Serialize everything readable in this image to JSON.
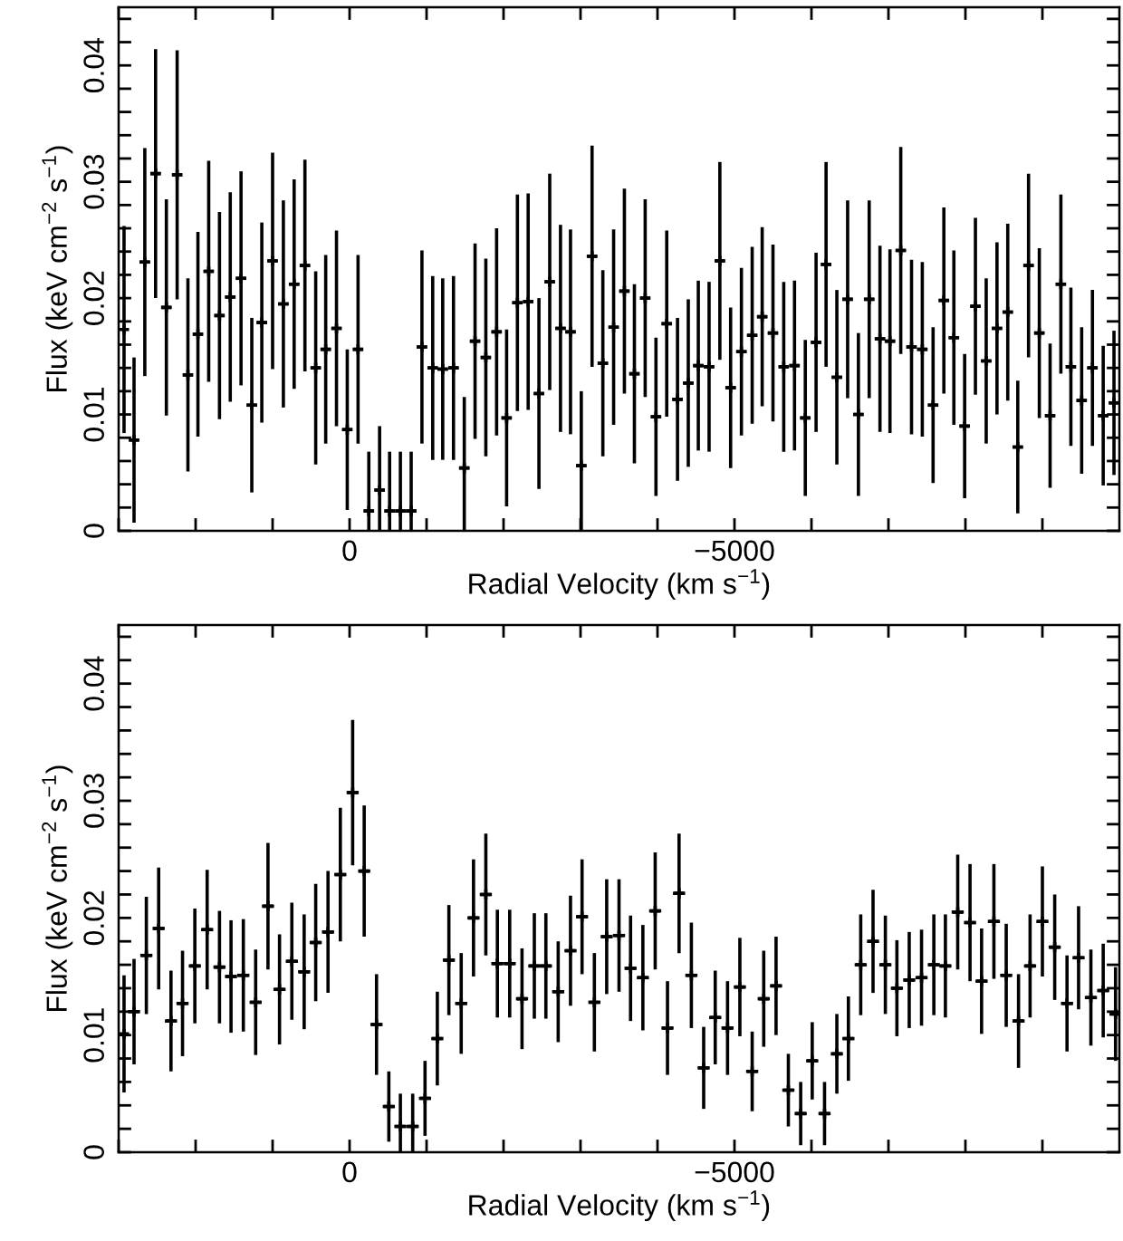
{
  "chart_data": [
    {
      "type": "scatter",
      "marker": "cross",
      "xlabel": "Radial Velocity (km s$^{−1}$)",
      "ylabel": "Flux (keV cm$^{−2}$ s$^{−1}$)",
      "xlim": [
        3000,
        -10000
      ],
      "ylim": [
        0,
        0.045
      ],
      "xticks": [
        {
          "value": 3000,
          "label": null
        },
        {
          "value": 2000,
          "label": null
        },
        {
          "value": 1000,
          "label": null
        },
        0,
        {
          "value": -1000,
          "label": null
        },
        {
          "value": -2000,
          "label": null
        },
        {
          "value": -3000,
          "label": null
        },
        {
          "value": -4000,
          "label": null
        },
        {
          "value": -5000,
          "label": "−5000"
        },
        {
          "value": -6000,
          "label": null
        },
        {
          "value": -7000,
          "label": null
        },
        {
          "value": -8000,
          "label": null
        },
        {
          "value": -9000,
          "label": null
        }
      ],
      "yticks": [
        0,
        {
          "value": 0.002,
          "label": null
        },
        {
          "value": 0.004,
          "label": null
        },
        {
          "value": 0.006,
          "label": null
        },
        {
          "value": 0.008,
          "label": null
        },
        0.01,
        {
          "value": 0.012,
          "label": null
        },
        {
          "value": 0.014,
          "label": null
        },
        {
          "value": 0.016,
          "label": null
        },
        {
          "value": 0.018,
          "label": null
        },
        0.02,
        {
          "value": 0.022,
          "label": null
        },
        {
          "value": 0.024,
          "label": null
        },
        {
          "value": 0.026,
          "label": null
        },
        {
          "value": 0.028,
          "label": null
        },
        0.03,
        {
          "value": 0.032,
          "label": null
        },
        {
          "value": 0.034,
          "label": null
        },
        {
          "value": 0.036,
          "label": null
        },
        {
          "value": 0.038,
          "label": null
        },
        0.04,
        {
          "value": 0.042,
          "label": null
        },
        {
          "value": 0.044,
          "label": null
        }
      ],
      "series": [
        {
          "color": "#000000",
          "x": [
            2930,
            2800,
            2660,
            2520,
            2380,
            2240,
            2100,
            1970,
            1830,
            1690,
            1550,
            1410,
            1270,
            1140,
            1000,
            860,
            720,
            580,
            440,
            310,
            170,
            30,
            -110,
            -250,
            -390,
            -520,
            -660,
            -800,
            -940,
            -1080,
            -1210,
            -1350,
            -1490,
            -1630,
            -1770,
            -1910,
            -2040,
            -2180,
            -2320,
            -2460,
            -2600,
            -2740,
            -2870,
            -3010,
            -3150,
            -3290,
            -3430,
            -3570,
            -3700,
            -3840,
            -3980,
            -4120,
            -4260,
            -4400,
            -4530,
            -4670,
            -4810,
            -4950,
            -5090,
            -5230,
            -5360,
            -5500,
            -5640,
            -5780,
            -5920,
            -6060,
            -6190,
            -6330,
            -6470,
            -6610,
            -6750,
            -6890,
            -7020,
            -7160,
            -7300,
            -7440,
            -7580,
            -7720,
            -7850,
            -7990,
            -8130,
            -8270,
            -8410,
            -8550,
            -8680,
            -8820,
            -8960,
            -9100,
            -9240,
            -9370,
            -9510,
            -9650,
            -9790,
            -9930
          ],
          "values": [
            0.0173,
            0.0078,
            0.0231,
            0.0307,
            0.0192,
            0.0306,
            0.0134,
            0.0169,
            0.0223,
            0.0185,
            0.0201,
            0.0217,
            0.0108,
            0.0179,
            0.0232,
            0.0195,
            0.0212,
            0.0228,
            0.014,
            0.0156,
            0.0174,
            0.0087,
            0.0156,
            0.0017,
            0.0035,
            0.0017,
            0.0017,
            0.0017,
            0.0158,
            0.014,
            0.0139,
            0.014,
            0.0054,
            0.0163,
            0.0149,
            0.0171,
            0.0097,
            0.0196,
            0.0197,
            0.0118,
            0.0214,
            0.0174,
            0.0171,
            0.0056,
            0.0236,
            0.0144,
            0.0175,
            0.0206,
            0.0135,
            0.02,
            0.0098,
            0.0178,
            0.0113,
            0.0127,
            0.0142,
            0.0141,
            0.0232,
            0.0123,
            0.0154,
            0.0168,
            0.0184,
            0.017,
            0.0141,
            0.0142,
            0.0097,
            0.0162,
            0.0229,
            0.0132,
            0.0199,
            0.01,
            0.0199,
            0.0165,
            0.0163,
            0.0241,
            0.0158,
            0.0156,
            0.0108,
            0.0198,
            0.0166,
            0.009,
            0.0193,
            0.0146,
            0.0174,
            0.0188,
            0.0072,
            0.0228,
            0.017,
            0.0099,
            0.0212,
            0.0141,
            0.0112,
            0.014,
            0.0099,
            0.011
          ],
          "errors": [
            0.0089,
            0.0071,
            0.0098,
            0.0107,
            0.0093,
            0.0107,
            0.0083,
            0.0088,
            0.0095,
            0.0089,
            0.009,
            0.0092,
            0.0075,
            0.0086,
            0.0093,
            0.0089,
            0.009,
            0.0091,
            0.0083,
            0.0081,
            0.0084,
            0.0069,
            0.0081,
            [
              0,
              0.0068
            ],
            [
              0,
              0.009
            ],
            [
              0,
              0.0068
            ],
            [
              0,
              0.0068
            ],
            [
              0,
              0.0068
            ],
            0.0083,
            0.0079,
            0.0078,
            0.0079,
            [
              0,
              0.0115
            ],
            0.0084,
            0.0085,
            0.0089,
            0.0076,
            0.0093,
            0.0093,
            0.0082,
            0.0093,
            0.0089,
            0.0088,
            [
              0,
              0.012
            ],
            0.0095,
            0.008,
            0.0084,
            0.0088,
            0.0077,
            0.0085,
            0.0068,
            0.008,
            0.007,
            0.0072,
            0.0073,
            0.0073,
            0.0085,
            0.0069,
            0.0072,
            0.0076,
            0.0077,
            0.0076,
            0.0073,
            0.0073,
            0.0067,
            0.0077,
            0.0088,
            0.0075,
            0.0085,
            0.007,
            0.0085,
            0.008,
            0.0079,
            0.0089,
            0.0075,
            0.0075,
            0.0067,
            0.008,
            0.0075,
            0.0062,
            0.0076,
            0.0071,
            0.0074,
            0.0076,
            0.0057,
            0.0079,
            0.0073,
            0.0062,
            0.0077,
            0.0068,
            0.0063,
            0.0067,
            0.006,
            0.0062
          ],
          "xerrors": [
            null,
            69,
            69,
            69,
            69,
            69,
            69,
            69,
            69,
            69,
            69,
            69,
            69,
            69,
            69,
            69,
            69,
            69,
            69,
            69,
            69,
            69,
            69,
            69,
            69,
            69,
            69,
            69,
            69,
            69,
            69,
            69,
            69,
            69,
            69,
            69,
            69,
            69,
            69,
            69,
            69,
            69,
            69,
            69,
            69,
            69,
            69,
            69,
            69,
            69,
            69,
            69,
            69,
            69,
            69,
            69,
            69,
            69,
            69,
            69,
            69,
            69,
            69,
            69,
            69,
            69,
            69,
            69,
            69,
            69,
            69,
            69,
            69,
            69,
            69,
            69,
            69,
            69,
            69,
            69,
            69,
            69,
            69,
            69,
            69,
            69,
            69,
            69,
            69,
            69,
            69,
            69,
            69,
            69
          ]
        }
      ]
    },
    {
      "type": "scatter",
      "marker": "cross",
      "xlabel": "Radial Velocity (km s$^{−1}$)",
      "ylabel": "Flux (keV cm$^{−2}$ s$^{−1}$)",
      "xlim": [
        3000,
        -10000
      ],
      "ylim": [
        0,
        0.045
      ],
      "xticks": [
        {
          "value": 3000,
          "label": null
        },
        {
          "value": 2000,
          "label": null
        },
        {
          "value": 1000,
          "label": null
        },
        0,
        {
          "value": -1000,
          "label": null
        },
        {
          "value": -2000,
          "label": null
        },
        {
          "value": -3000,
          "label": null
        },
        {
          "value": -4000,
          "label": null
        },
        {
          "value": -5000,
          "label": "−5000"
        },
        {
          "value": -6000,
          "label": null
        },
        {
          "value": -7000,
          "label": null
        },
        {
          "value": -8000,
          "label": null
        },
        {
          "value": -9000,
          "label": null
        }
      ],
      "yticks": [
        0,
        {
          "value": 0.002,
          "label": null
        },
        {
          "value": 0.004,
          "label": null
        },
        {
          "value": 0.006,
          "label": null
        },
        {
          "value": 0.008,
          "label": null
        },
        0.01,
        {
          "value": 0.012,
          "label": null
        },
        {
          "value": 0.014,
          "label": null
        },
        {
          "value": 0.016,
          "label": null
        },
        {
          "value": 0.018,
          "label": null
        },
        0.02,
        {
          "value": 0.022,
          "label": null
        },
        {
          "value": 0.024,
          "label": null
        },
        {
          "value": 0.026,
          "label": null
        },
        {
          "value": 0.028,
          "label": null
        },
        0.03,
        {
          "value": 0.032,
          "label": null
        },
        {
          "value": 0.034,
          "label": null
        },
        {
          "value": 0.036,
          "label": null
        },
        {
          "value": 0.038,
          "label": null
        },
        0.04,
        {
          "value": 0.042,
          "label": null
        },
        {
          "value": 0.044,
          "label": null
        }
      ],
      "series": [
        {
          "color": "#000000",
          "x": [
            2930,
            2800,
            2640,
            2480,
            2320,
            2170,
            2010,
            1850,
            1690,
            1540,
            1380,
            1220,
            1060,
            910,
            750,
            590,
            440,
            280,
            120,
            -40,
            -190,
            -350,
            -510,
            -660,
            -820,
            -980,
            -1140,
            -1290,
            -1450,
            -1610,
            -1770,
            -1920,
            -2080,
            -2240,
            -2400,
            -2550,
            -2710,
            -2870,
            -3020,
            -3180,
            -3340,
            -3500,
            -3650,
            -3810,
            -3970,
            -4130,
            -4280,
            -4440,
            -4600,
            -4750,
            -4910,
            -5070,
            -5230,
            -5380,
            -5540,
            -5700,
            -5860,
            -6010,
            -6170,
            -6330,
            -6480,
            -6640,
            -6800,
            -6960,
            -7110,
            -7270,
            -7430,
            -7590,
            -7740,
            -7900,
            -8060,
            -8210,
            -8370,
            -8530,
            -8690,
            -8840,
            -9000,
            -9160,
            -9320,
            -9470,
            -9630,
            -9790,
            -9950
          ],
          "values": [
            0.0101,
            0.012,
            0.0168,
            0.0191,
            0.0112,
            0.0127,
            0.0159,
            0.019,
            0.0158,
            0.015,
            0.0151,
            0.0128,
            0.021,
            0.0139,
            0.0163,
            0.0154,
            0.0179,
            0.0188,
            0.0237,
            0.0307,
            0.024,
            0.0109,
            0.0039,
            0.0022,
            0.0022,
            0.0046,
            0.0097,
            0.0164,
            0.0127,
            0.02,
            0.022,
            0.0161,
            0.0161,
            0.0131,
            0.0159,
            0.0159,
            0.0137,
            0.0172,
            0.0201,
            0.0128,
            0.0184,
            0.0185,
            0.0157,
            0.0149,
            0.0206,
            0.0106,
            0.0221,
            0.0151,
            0.0072,
            0.0115,
            0.0106,
            0.0141,
            0.0069,
            0.0131,
            0.0142,
            0.0053,
            0.0033,
            0.0078,
            0.0033,
            0.0084,
            0.0097,
            0.016,
            0.018,
            0.016,
            0.014,
            0.0147,
            0.0149,
            0.016,
            0.0159,
            0.0205,
            0.0196,
            0.0146,
            0.0197,
            0.0151,
            0.0112,
            0.0159,
            0.0197,
            0.0175,
            0.0127,
            0.0166,
            0.0132,
            0.0138,
            0.0118
          ],
          "errors": [
            0.005,
            0.0045,
            0.005,
            0.0052,
            0.0043,
            0.0045,
            0.0049,
            0.0051,
            0.0048,
            0.0048,
            0.0048,
            0.0045,
            0.0054,
            0.0047,
            0.005,
            0.0049,
            0.005,
            0.0052,
            0.0057,
            0.0062,
            0.0056,
            0.0043,
            0.003,
            [
              0,
              0.005
            ],
            [
              0,
              0.005
            ],
            0.0032,
            0.004,
            0.0047,
            0.0043,
            0.005,
            0.0052,
            0.0046,
            0.0046,
            0.0043,
            0.0045,
            0.0045,
            0.0043,
            0.0047,
            0.0049,
            0.0042,
            0.0049,
            0.0048,
            0.0045,
            0.0045,
            0.005,
            0.004,
            0.0051,
            0.0045,
            0.0035,
            0.004,
            0.004,
            0.0042,
            0.0034,
            0.0041,
            0.0042,
            0.0031,
            0.0027,
            0.0033,
            0.0027,
            0.0034,
            0.0036,
            0.0043,
            0.0044,
            0.0042,
            0.0041,
            0.0041,
            0.0041,
            0.0043,
            0.0044,
            0.0049,
            0.005,
            0.0045,
            0.0049,
            0.0044,
            0.004,
            0.0044,
            0.0047,
            0.0045,
            0.0041,
            0.0044,
            0.0041,
            0.004,
            0.004
          ],
          "xerrors": [
            null,
            79,
            79,
            79,
            79,
            79,
            79,
            79,
            79,
            79,
            79,
            79,
            79,
            79,
            79,
            79,
            79,
            79,
            79,
            79,
            79,
            79,
            79,
            79,
            79,
            79,
            79,
            79,
            79,
            79,
            79,
            79,
            79,
            79,
            79,
            79,
            79,
            79,
            79,
            79,
            79,
            79,
            79,
            79,
            79,
            79,
            79,
            79,
            79,
            79,
            79,
            79,
            79,
            79,
            79,
            79,
            79,
            79,
            79,
            79,
            79,
            79,
            79,
            79,
            79,
            79,
            79,
            79,
            79,
            79,
            79,
            79,
            79,
            79,
            79,
            79,
            79,
            79,
            79,
            79,
            79,
            79,
            [
              -10000,
              -9871
            ]
          ]
        }
      ]
    }
  ]
}
